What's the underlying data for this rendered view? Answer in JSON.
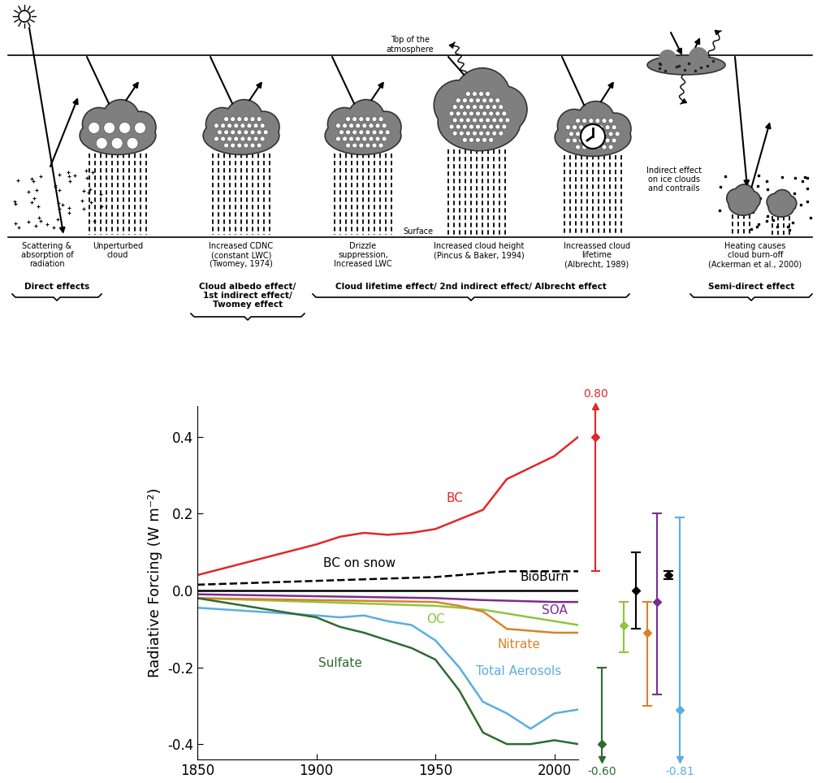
{
  "diagram": {
    "top_label": "Top of the\natmosphere",
    "surface_label": "Surface",
    "panels": [
      {
        "label": "Scattering &\nabsorption of\nradiation"
      },
      {
        "label": "Unperturbed\ncloud"
      },
      {
        "label": "Increased CDNC\n(constant LWC)\n(Twomey, 1974)"
      },
      {
        "label": "Drizzle\nsuppression,\nIncreased LWC"
      },
      {
        "label": "Increased cloud height\n(Pincus & Baker, 1994)"
      },
      {
        "label": "Increassed cloud\nlifetime\n(Albrecht, 1989)"
      },
      {
        "label": "Indirect effect\non ice clouds\nand contrails"
      },
      {
        "label": "Heating causes\ncloud burn-off\n(Ackerman et al., 2000)"
      }
    ],
    "groups": [
      {
        "label": "Direct effects"
      },
      {
        "label": "Cloud albedo effect/\n1st indirect effect/\nTwomey effect"
      },
      {
        "label": "Cloud lifetime effect/ 2nd indirect effect/ Albrecht effect"
      },
      {
        "label": "Semi-direct effect"
      }
    ]
  },
  "chart_data": {
    "type": "line",
    "ylabel": "Radiative Forcing (W m⁻²)",
    "xlim": [
      1850,
      2010
    ],
    "ylim": [
      -0.44,
      0.48
    ],
    "xticks": [
      1850,
      1900,
      1950,
      2000
    ],
    "yticks": [
      -0.4,
      -0.2,
      {
        "value": 0,
        "label": "0.0"
      },
      0.2,
      0.4
    ],
    "series": [
      {
        "name": "BC",
        "color": "#e3262b",
        "line_style": "solid",
        "x": [
          1850,
          1900,
          1910,
          1920,
          1930,
          1940,
          1950,
          1960,
          1970,
          1980,
          1990,
          2000,
          2010
        ],
        "values": [
          0.04,
          0.12,
          0.14,
          0.15,
          0.145,
          0.15,
          0.16,
          0.185,
          0.21,
          0.29,
          0.32,
          0.35,
          0.4
        ],
        "error_bar": {
          "value": 0.4,
          "low": 0.05,
          "high": 0.8,
          "high_label": "0.80"
        }
      },
      {
        "name": "BC on snow",
        "color": "#000000",
        "line_style": "dashed",
        "x": [
          1850,
          1900,
          1950,
          1980,
          2000,
          2010
        ],
        "values": [
          0.015,
          0.025,
          0.035,
          0.05,
          0.05,
          0.05
        ],
        "error_bar": {
          "value": 0.04,
          "low": 0.03,
          "high": 0.05
        }
      },
      {
        "name": "BioBurn",
        "color": "#000000",
        "line_style": "solid",
        "x": [
          1850,
          2010
        ],
        "values": [
          0.0,
          0.0
        ],
        "error_bar": {
          "value": 0.0,
          "low": -0.1,
          "high": 0.1
        }
      },
      {
        "name": "SOA",
        "color": "#7b2d8e",
        "line_style": "solid",
        "x": [
          1850,
          1900,
          1950,
          1970,
          2000,
          2010
        ],
        "values": [
          -0.01,
          -0.015,
          -0.02,
          -0.025,
          -0.03,
          -0.03
        ],
        "error_bar": {
          "value": -0.03,
          "low": -0.27,
          "high": 0.2
        }
      },
      {
        "name": "OC",
        "color": "#8cc63f",
        "line_style": "solid",
        "x": [
          1850,
          1900,
          1950,
          1970,
          1980,
          1990,
          2000,
          2010
        ],
        "values": [
          -0.02,
          -0.03,
          -0.04,
          -0.05,
          -0.06,
          -0.07,
          -0.08,
          -0.09
        ],
        "error_bar": {
          "value": -0.09,
          "low": -0.16,
          "high": -0.03
        }
      },
      {
        "name": "Nitrate",
        "color": "#d9822b",
        "line_style": "solid",
        "x": [
          1850,
          1900,
          1950,
          1960,
          1970,
          1980,
          1990,
          2000,
          2010
        ],
        "values": [
          -0.02,
          -0.025,
          -0.03,
          -0.04,
          -0.055,
          -0.1,
          -0.105,
          -0.11,
          -0.11
        ],
        "error_bar": {
          "value": -0.11,
          "low": -0.3,
          "high": -0.03
        }
      },
      {
        "name": "Total Aerosols",
        "color": "#5aaee0",
        "line_style": "solid",
        "x": [
          1850,
          1900,
          1910,
          1920,
          1930,
          1940,
          1950,
          1960,
          1970,
          1980,
          1990,
          2000,
          2010
        ],
        "values": [
          -0.045,
          -0.065,
          -0.07,
          -0.065,
          -0.08,
          -0.09,
          -0.13,
          -0.2,
          -0.29,
          -0.32,
          -0.36,
          -0.32,
          -0.31
        ],
        "error_bar": {
          "value": -0.31,
          "low": -0.81,
          "high": 0.19,
          "low_label": "-0.81"
        }
      },
      {
        "name": "Sulfate",
        "color": "#2e6b30",
        "line_style": "solid",
        "x": [
          1850,
          1900,
          1910,
          1920,
          1930,
          1940,
          1950,
          1960,
          1970,
          1980,
          1990,
          2000,
          2010
        ],
        "values": [
          -0.02,
          -0.07,
          -0.095,
          -0.11,
          -0.13,
          -0.15,
          -0.18,
          -0.26,
          -0.37,
          -0.4,
          -0.4,
          -0.39,
          -0.4
        ],
        "error_bar": {
          "value": -0.4,
          "low": -0.6,
          "high": -0.2,
          "low_label": "-0.60"
        }
      }
    ]
  }
}
